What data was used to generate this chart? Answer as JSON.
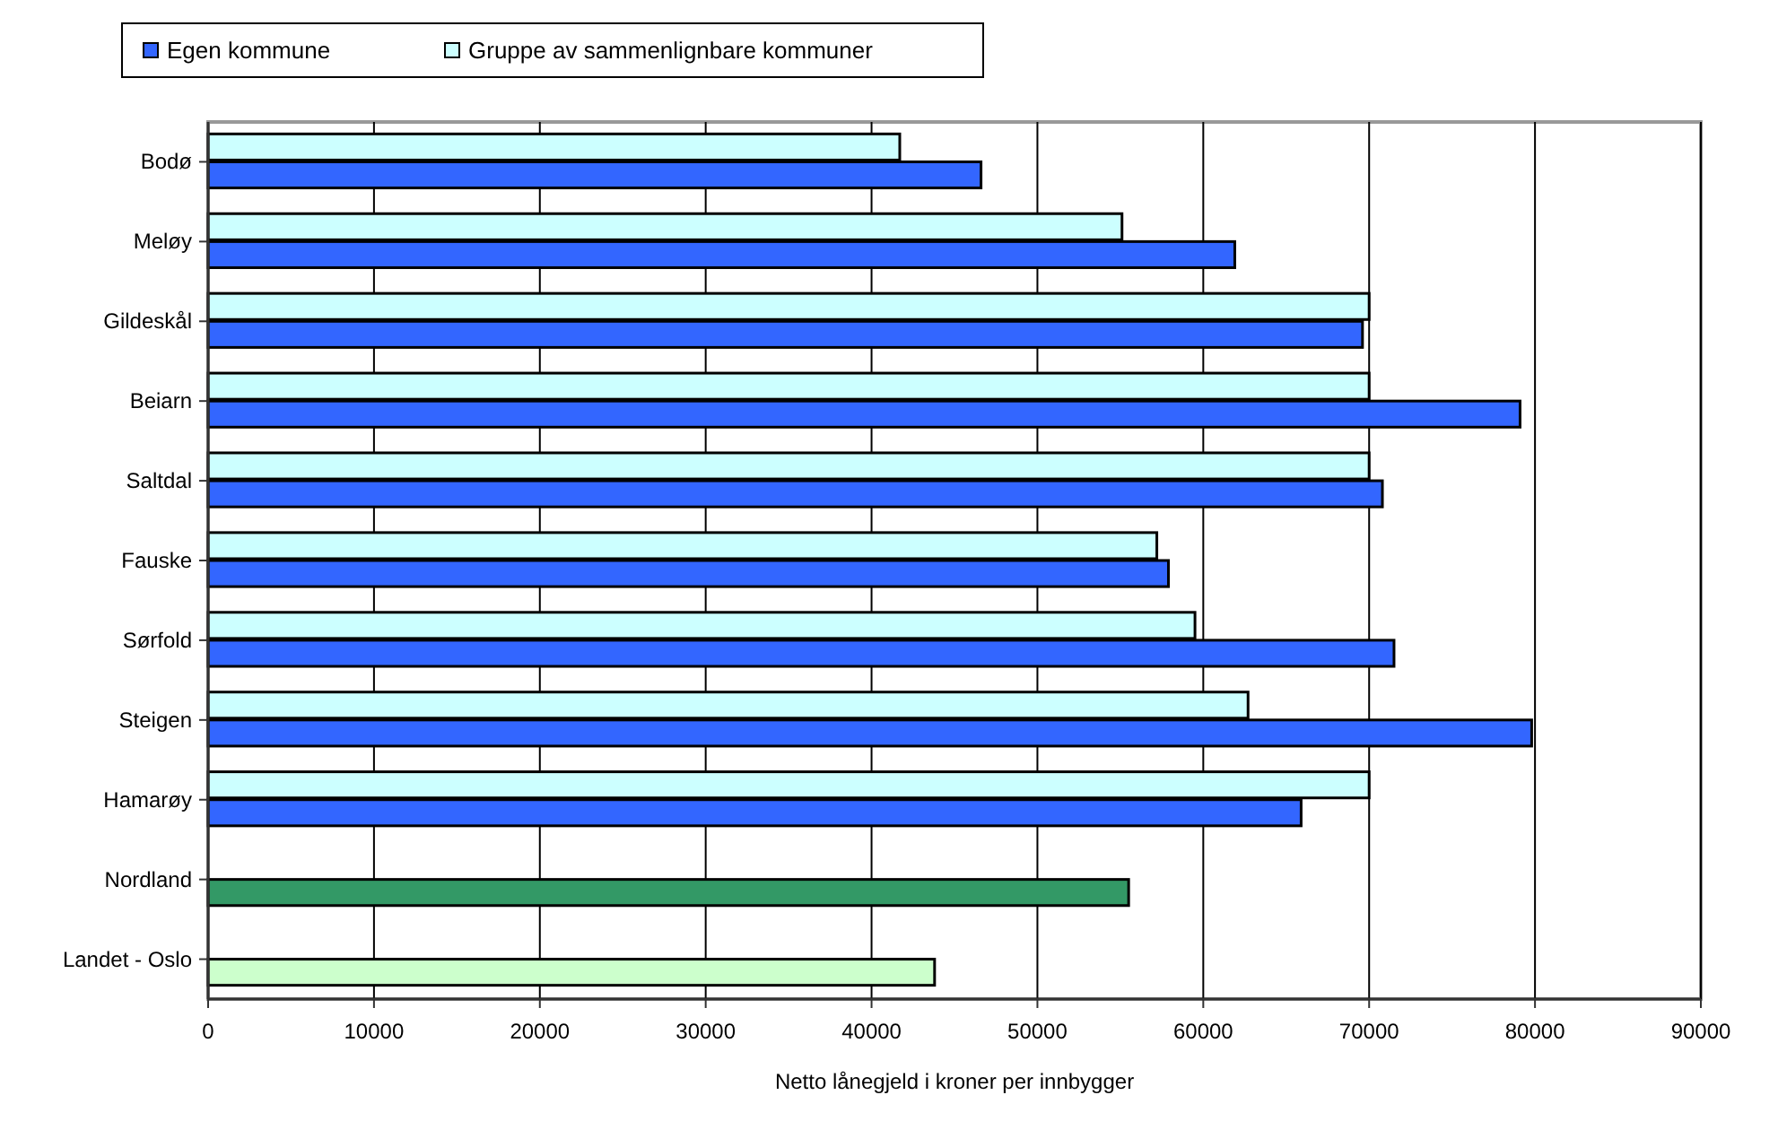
{
  "chart_data": {
    "type": "bar",
    "orientation": "horizontal",
    "xlabel": "Netto lånegjeld i kroner per innbygger",
    "categories": [
      "Bodø",
      "Meløy",
      "Gildeskål",
      "Beiarn",
      "Saltdal",
      "Fauske",
      "Sørfold",
      "Steigen",
      "Hamarøy",
      "Nordland",
      "Landet - Oslo"
    ],
    "series": [
      {
        "name": "Egen kommune",
        "color": "#3366ff",
        "colors": [
          "#3366ff",
          "#3366ff",
          "#3366ff",
          "#3366ff",
          "#3366ff",
          "#3366ff",
          "#3366ff",
          "#3366ff",
          "#3366ff",
          "#339966",
          "#ccffcc"
        ],
        "values": [
          46600,
          61900,
          69600,
          79100,
          70800,
          57900,
          71500,
          79800,
          65900,
          55500,
          43800
        ]
      },
      {
        "name": "Gruppe av sammenlignbare kommuner",
        "color": "#ccffff",
        "values": [
          41700,
          55100,
          70000,
          70000,
          70000,
          57200,
          59500,
          62700,
          70000,
          null,
          null
        ]
      }
    ],
    "xlim": [
      0,
      90000
    ],
    "xticks": [
      0,
      10000,
      20000,
      30000,
      40000,
      50000,
      60000,
      70000,
      80000,
      90000
    ],
    "grid": "x",
    "legend": "top left"
  }
}
